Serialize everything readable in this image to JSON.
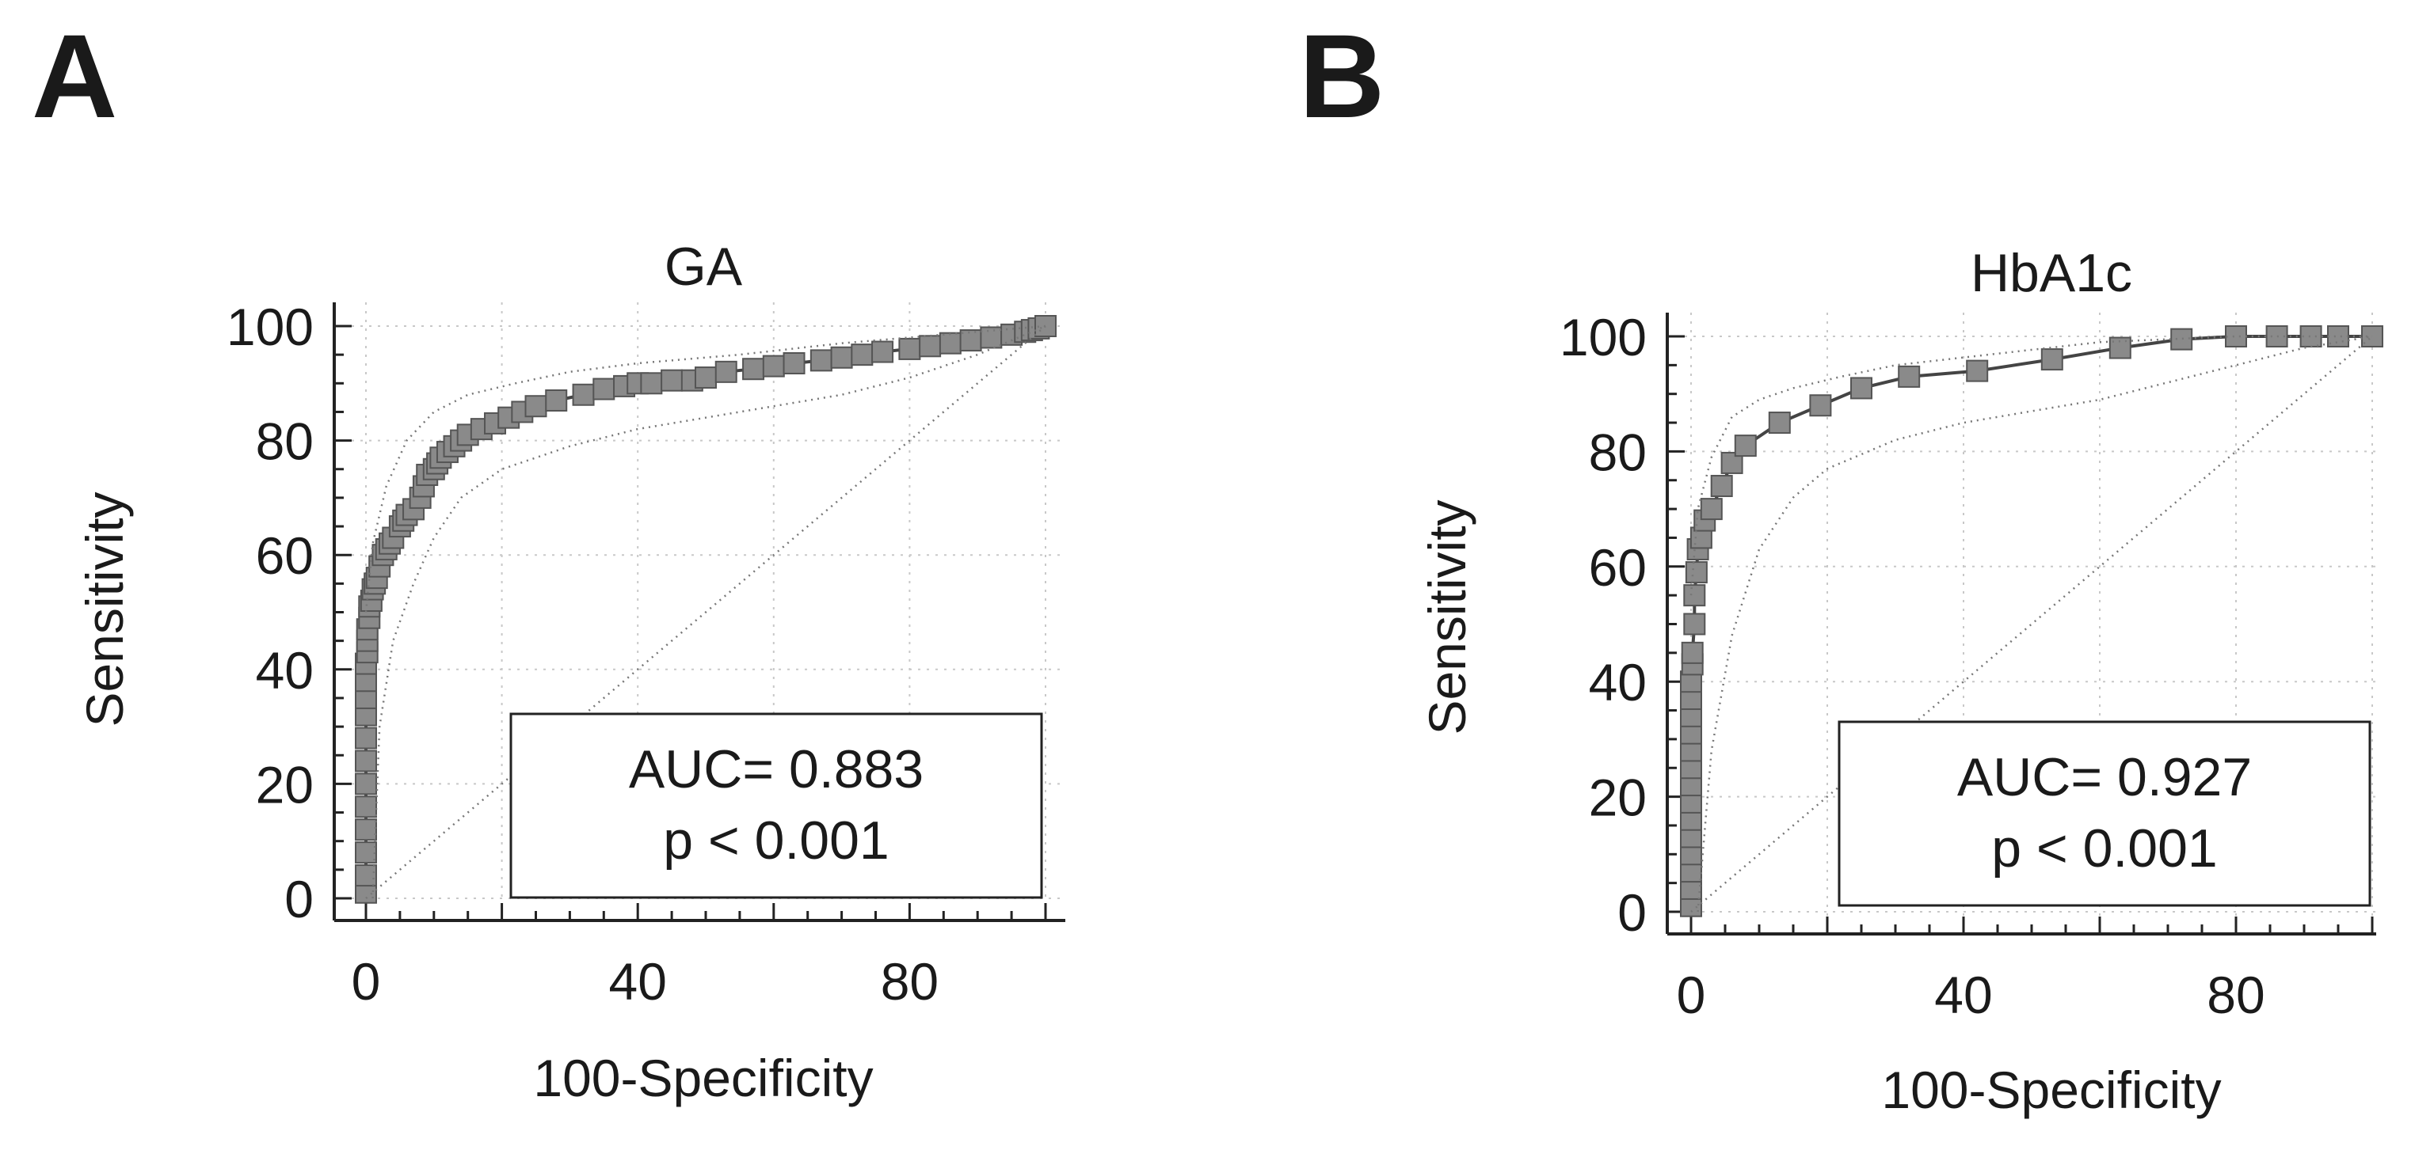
{
  "figure": {
    "panels": [
      "A",
      "B"
    ]
  },
  "chart_data": [
    {
      "type": "line",
      "panel_label": "A",
      "title": "GA",
      "xlabel": "100-Specificity",
      "ylabel": "Sensitivity",
      "xlim": [
        0,
        100
      ],
      "ylim": [
        0,
        100
      ],
      "xticks": [
        "0",
        "40",
        "80"
      ],
      "yticks": [
        "0",
        "20",
        "40",
        "60",
        "80",
        "100"
      ],
      "grid": true,
      "annotation": {
        "auc": "AUC= 0.883",
        "p": "p < 0.001"
      },
      "series": [
        {
          "name": "ROC",
          "markers": true,
          "x": [
            0,
            0,
            0,
            0,
            0,
            0,
            0,
            0,
            0,
            0,
            0,
            0,
            0.2,
            0.2,
            0.2,
            0.5,
            0.5,
            0.8,
            1,
            1.3,
            1.6,
            2,
            2.5,
            3,
            3.5,
            4,
            5,
            5.5,
            6,
            7,
            8,
            8.5,
            9,
            10,
            10.5,
            11,
            12,
            13,
            14,
            15,
            17,
            19,
            21,
            23,
            25,
            28,
            32,
            35,
            38,
            40,
            42,
            45,
            48,
            50,
            53,
            57,
            60,
            63,
            67,
            70,
            73,
            76,
            80,
            83,
            86,
            89,
            92,
            95,
            97,
            98,
            99,
            100
          ],
          "y": [
            1,
            4,
            8,
            12,
            16,
            20,
            24,
            28,
            32,
            35,
            38,
            41,
            43,
            45,
            47,
            49,
            51,
            52,
            54,
            55,
            56,
            58,
            60,
            61,
            62,
            63,
            65,
            66,
            67,
            68,
            70,
            72,
            74,
            75,
            76,
            77,
            78,
            79,
            80,
            81,
            82,
            83,
            84,
            85,
            86,
            87,
            88,
            89,
            89.5,
            90,
            90,
            90.5,
            90.5,
            91,
            92,
            92.5,
            93,
            93.5,
            94,
            94.5,
            95,
            95.5,
            96,
            96.5,
            97,
            97.5,
            98,
            98.5,
            99,
            99.3,
            99.6,
            100
          ]
        },
        {
          "name": "upper CI",
          "style": "dotted",
          "x": [
            0,
            1,
            3,
            6,
            10,
            15,
            22,
            30,
            40,
            55,
            70,
            85,
            100
          ],
          "y": [
            50,
            62,
            72,
            80,
            85,
            88,
            90,
            92,
            93.5,
            95,
            97,
            98.5,
            100
          ]
        },
        {
          "name": "lower CI",
          "style": "dotted",
          "x": [
            1,
            2,
            4,
            7,
            10,
            14,
            20,
            30,
            40,
            50,
            60,
            70,
            80,
            90,
            100
          ],
          "y": [
            0,
            30,
            45,
            55,
            63,
            70,
            75,
            79,
            82,
            84,
            86,
            88,
            91,
            95,
            100
          ]
        },
        {
          "name": "reference",
          "style": "dotted",
          "x": [
            0,
            100
          ],
          "y": [
            0,
            100
          ]
        }
      ]
    },
    {
      "type": "line",
      "panel_label": "B",
      "title": "HbA1c",
      "xlabel": "100-Specificity",
      "ylabel": "Sensitivity",
      "xlim": [
        0,
        100
      ],
      "ylim": [
        0,
        100
      ],
      "xticks": [
        "0",
        "40",
        "80"
      ],
      "yticks": [
        "0",
        "20",
        "40",
        "60",
        "80",
        "100"
      ],
      "grid": true,
      "annotation": {
        "auc": "AUC= 0.927",
        "p": "p < 0.001"
      },
      "series": [
        {
          "name": "ROC",
          "markers": true,
          "x": [
            0,
            0,
            0,
            0,
            0,
            0,
            0,
            0,
            0,
            0,
            0,
            0,
            0,
            0,
            0.2,
            0.2,
            0.5,
            0.5,
            0.8,
            1,
            1.5,
            2,
            3,
            4.5,
            6,
            8,
            13,
            19,
            25,
            32,
            42,
            53,
            63,
            72,
            80,
            86,
            91,
            95,
            100
          ],
          "y": [
            1,
            4,
            7,
            10,
            13,
            16,
            19,
            22,
            25,
            28,
            31,
            34,
            37,
            40,
            43,
            45,
            50,
            55,
            59,
            63,
            65,
            68,
            70,
            74,
            78,
            81,
            85,
            88,
            91,
            93,
            94,
            96,
            98,
            99.5,
            100,
            100,
            100,
            100,
            100
          ]
        },
        {
          "name": "upper CI",
          "style": "dotted",
          "x": [
            0,
            1,
            3,
            6,
            10,
            15,
            22,
            30,
            45,
            60,
            80,
            100
          ],
          "y": [
            55,
            70,
            79,
            86,
            89,
            91,
            93,
            95,
            97,
            99,
            100,
            100
          ]
        },
        {
          "name": "lower CI",
          "style": "dotted",
          "x": [
            1,
            3,
            6,
            10,
            15,
            20,
            30,
            40,
            50,
            60,
            70,
            80,
            90,
            100
          ],
          "y": [
            0,
            28,
            48,
            63,
            72,
            77,
            82,
            85,
            87,
            89,
            92,
            95,
            98,
            100
          ]
        },
        {
          "name": "reference",
          "style": "dotted",
          "x": [
            0,
            100
          ],
          "y": [
            0,
            100
          ]
        }
      ]
    }
  ]
}
